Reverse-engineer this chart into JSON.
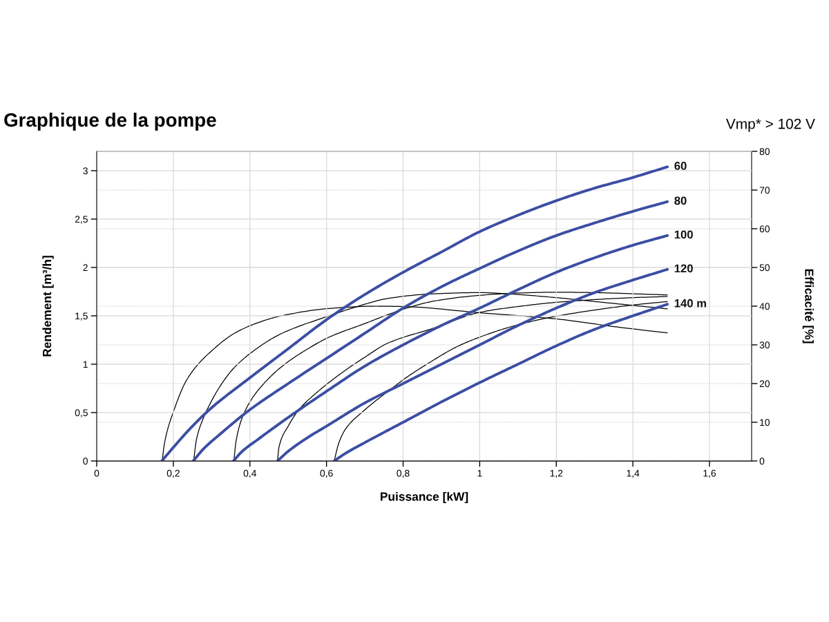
{
  "chart_data": {
    "type": "line",
    "title": "Graphique de la pompe",
    "annotations": [
      "Vmp* > 102 V"
    ],
    "xlabel": "Puissance [kW]",
    "ylabel": "Rendement [m³/h]",
    "y2label": "Efficacité [%]",
    "xlim": [
      0,
      1.71
    ],
    "xticks": [
      0,
      {
        "value": 0.2,
        "label": "0,2"
      },
      {
        "value": 0.4,
        "label": "0,4"
      },
      {
        "value": 0.6,
        "label": "0,6"
      },
      {
        "value": 0.8,
        "label": "0,8"
      },
      1,
      {
        "value": 1.2,
        "label": "1,2"
      },
      {
        "value": 1.4,
        "label": "1,4"
      },
      {
        "value": 1.6,
        "label": "1,6"
      }
    ],
    "ylim": [
      0,
      3.2
    ],
    "yticks": [
      0,
      {
        "value": 0.5,
        "label": "0,5"
      },
      1,
      {
        "value": 1.5,
        "label": "1,5"
      },
      2,
      {
        "value": 2.5,
        "label": "2,5"
      },
      3
    ],
    "y2lim": [
      0,
      80
    ],
    "y2ticks": [
      0,
      10,
      20,
      30,
      40,
      50,
      60,
      70,
      80
    ],
    "grid": true,
    "series": [
      {
        "name": "60",
        "color": "#3b4ea3",
        "x": [
          0.17,
          0.2,
          0.25,
          0.3,
          0.4,
          0.5,
          0.6,
          0.7,
          0.8,
          0.9,
          1.0,
          1.1,
          1.2,
          1.3,
          1.4,
          1.49
        ],
        "values": [
          0,
          0.14,
          0.36,
          0.55,
          0.86,
          1.16,
          1.46,
          1.72,
          1.95,
          2.16,
          2.37,
          2.54,
          2.69,
          2.82,
          2.93,
          3.04
        ]
      },
      {
        "name": "80",
        "color": "#3b4ea3",
        "x": [
          0.252,
          0.28,
          0.32,
          0.4,
          0.5,
          0.6,
          0.7,
          0.8,
          0.9,
          1.0,
          1.1,
          1.2,
          1.3,
          1.4,
          1.49
        ],
        "values": [
          0,
          0.13,
          0.27,
          0.53,
          0.8,
          1.06,
          1.32,
          1.58,
          1.8,
          1.99,
          2.17,
          2.33,
          2.46,
          2.58,
          2.68
        ]
      },
      {
        "name": "100",
        "color": "#3b4ea3",
        "x": [
          0.357,
          0.38,
          0.42,
          0.5,
          0.6,
          0.7,
          0.8,
          0.9,
          1.0,
          1.1,
          1.2,
          1.3,
          1.4,
          1.49
        ],
        "values": [
          0,
          0.1,
          0.22,
          0.45,
          0.72,
          0.98,
          1.2,
          1.4,
          1.58,
          1.77,
          1.95,
          2.1,
          2.23,
          2.33
        ]
      },
      {
        "name": "120",
        "color": "#3b4ea3",
        "x": [
          0.472,
          0.5,
          0.55,
          0.6,
          0.7,
          0.8,
          0.9,
          1.0,
          1.1,
          1.2,
          1.3,
          1.4,
          1.49
        ],
        "values": [
          0,
          0.1,
          0.24,
          0.36,
          0.6,
          0.8,
          1.0,
          1.2,
          1.4,
          1.58,
          1.74,
          1.87,
          1.98
        ]
      },
      {
        "name": "140 m",
        "color": "#3b4ea3",
        "x": [
          0.62,
          0.65,
          0.7,
          0.8,
          0.9,
          1.0,
          1.1,
          1.2,
          1.3,
          1.4,
          1.49
        ],
        "values": [
          0,
          0.08,
          0.19,
          0.4,
          0.61,
          0.81,
          1.0,
          1.19,
          1.36,
          1.5,
          1.62
        ]
      },
      {
        "color": "#000000",
        "axis": "y2",
        "x": [
          0.171,
          0.177,
          0.202,
          0.233,
          0.264,
          0.295,
          0.358,
          0.42,
          0.482,
          0.607,
          0.73,
          0.8,
          1.0,
          1.2,
          1.36,
          1.49
        ],
        "values": [
          0,
          4.6,
          13.2,
          20.6,
          24.9,
          28,
          32.9,
          35.7,
          37.5,
          39.4,
          40,
          39.9,
          38.3,
          36.7,
          34.6,
          33.1
        ]
      },
      {
        "color": "#000000",
        "axis": "y2",
        "x": [
          0.253,
          0.261,
          0.277,
          0.295,
          0.326,
          0.358,
          0.42,
          0.482,
          0.607,
          0.7,
          0.76,
          0.88,
          1.0,
          1.1,
          1.2,
          1.3,
          1.4,
          1.49
        ],
        "values": [
          0,
          5.8,
          10.7,
          14.6,
          19.9,
          24,
          29.2,
          32.9,
          37.5,
          40.5,
          42,
          43.2,
          43.5,
          43,
          42.2,
          41.2,
          40.2,
          39.3
        ]
      },
      {
        "color": "#000000",
        "axis": "y2",
        "x": [
          0.358,
          0.364,
          0.376,
          0.395,
          0.42,
          0.482,
          0.545,
          0.607,
          0.7,
          0.76,
          0.8,
          0.88,
          1.0,
          1.1,
          1.2,
          1.3,
          1.4,
          1.49
        ],
        "values": [
          0,
          5.2,
          10.1,
          14.4,
          18.1,
          24.3,
          28.6,
          32,
          35.5,
          37.8,
          39.2,
          41.3,
          42.8,
          43.4,
          43.6,
          43.5,
          43.2,
          42.9
        ]
      },
      {
        "color": "#000000",
        "axis": "y2",
        "x": [
          0.472,
          0.476,
          0.5,
          0.53,
          0.57,
          0.65,
          0.7,
          0.759,
          0.879,
          1.0,
          1.1,
          1.2,
          1.3,
          1.4,
          1.49
        ],
        "values": [
          0,
          3.6,
          9,
          13.5,
          17.3,
          23.5,
          26.8,
          30.4,
          34.3,
          38.4,
          39.9,
          41,
          41.7,
          42.2,
          42.5
        ]
      },
      {
        "color": "#000000",
        "axis": "y2",
        "x": [
          0.62,
          0.632,
          0.65,
          0.7,
          0.762,
          0.812,
          0.862,
          0.94,
          1.0,
          1.1,
          1.2,
          1.3,
          1.4,
          1.49
        ],
        "values": [
          0,
          4.6,
          8.3,
          13.2,
          18.1,
          21.8,
          25,
          29.5,
          32,
          35.2,
          37.4,
          39,
          40.3,
          41.2
        ]
      }
    ]
  }
}
